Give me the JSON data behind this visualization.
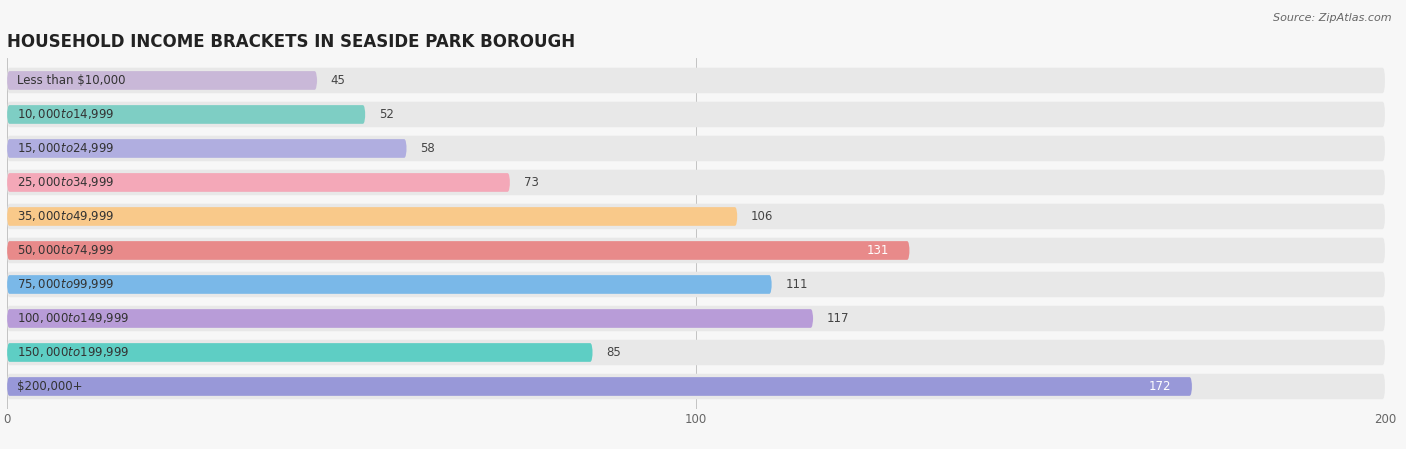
{
  "title": "HOUSEHOLD INCOME BRACKETS IN SEASIDE PARK BOROUGH",
  "source": "Source: ZipAtlas.com",
  "categories": [
    "Less than $10,000",
    "$10,000 to $14,999",
    "$15,000 to $24,999",
    "$25,000 to $34,999",
    "$35,000 to $49,999",
    "$50,000 to $74,999",
    "$75,000 to $99,999",
    "$100,000 to $149,999",
    "$150,000 to $199,999",
    "$200,000+"
  ],
  "values": [
    45,
    52,
    58,
    73,
    106,
    131,
    111,
    117,
    85,
    172
  ],
  "bar_colors": [
    "#c9b8d8",
    "#7ecec4",
    "#b0aee0",
    "#f4a8b8",
    "#f9c98a",
    "#e88a8a",
    "#7ab8e8",
    "#b89cd8",
    "#5ecec4",
    "#9898d8"
  ],
  "background_color": "#f7f7f7",
  "bar_bg_color": "#e8e8e8",
  "xlim": [
    0,
    200
  ],
  "xticks": [
    0,
    100,
    200
  ],
  "title_fontsize": 12,
  "label_fontsize": 8.5,
  "value_fontsize": 8.5,
  "source_fontsize": 8
}
